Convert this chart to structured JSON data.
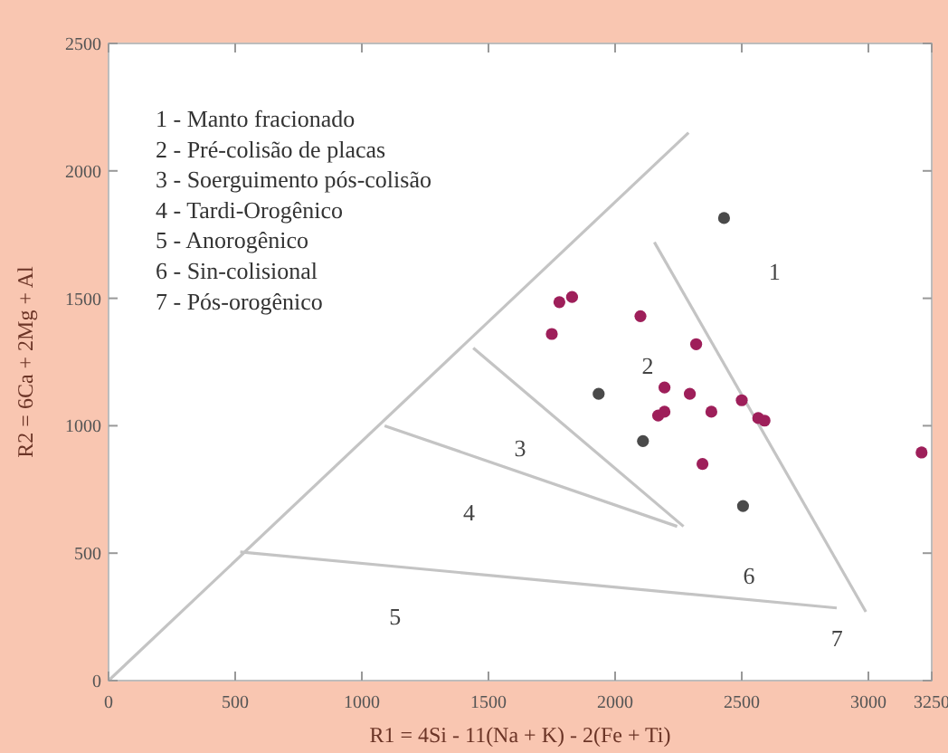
{
  "chart_data": {
    "type": "scatter",
    "xlabel": "R1 = 4Si - 11(Na + K) - 2(Fe + Ti)",
    "ylabel": "R2 = 6Ca + 2Mg + Al",
    "xlim": [
      0,
      3250
    ],
    "ylim": [
      0,
      2500
    ],
    "xticks": [
      0,
      500,
      1000,
      1500,
      2000,
      2500,
      3000,
      3250
    ],
    "yticks": [
      0,
      500,
      1000,
      1500,
      2000,
      2500
    ],
    "grid": false,
    "marker": "circle",
    "series": [
      {
        "type": "line",
        "marker": "none",
        "color": "#c4c4c4",
        "x": [
          0,
          2290
        ],
        "values": [
          0,
          2150
        ]
      },
      {
        "type": "line",
        "marker": "none",
        "color": "#c4c4c4",
        "x": [
          1440,
          2270
        ],
        "values": [
          1305,
          605
        ]
      },
      {
        "type": "line",
        "marker": "none",
        "color": "#c4c4c4",
        "x": [
          1090,
          2245
        ],
        "values": [
          1000,
          605
        ]
      },
      {
        "type": "line",
        "marker": "none",
        "color": "#c4c4c4",
        "x": [
          520,
          2875
        ],
        "values": [
          505,
          285
        ]
      },
      {
        "type": "line",
        "marker": "none",
        "color": "#c4c4c4",
        "x": [
          2155,
          2990
        ],
        "values": [
          1720,
          270
        ]
      },
      {
        "color": "#9e1f5a",
        "x": [
          1750,
          1780,
          1830,
          2100,
          2320,
          2195,
          2295,
          2170,
          2195,
          2380,
          2500,
          2565,
          2590,
          2345,
          3210
        ],
        "values": [
          1360,
          1485,
          1505,
          1430,
          1320,
          1150,
          1125,
          1040,
          1055,
          1055,
          1100,
          1030,
          1020,
          850,
          895
        ]
      },
      {
        "color": "#4a4a4a",
        "x": [
          2430,
          1935,
          2110,
          2505
        ],
        "values": [
          1815,
          1125,
          940,
          685
        ]
      }
    ],
    "annotations": [
      "1 - Manto fracionado",
      "2 - Pré-colisão de placas",
      "3 - Soerguimento pós-colisão",
      "4 - Tardi-Orogênico",
      "5 - Anorogênico",
      "6 - Sin-colisional",
      "7 - Pós-orogênico",
      "1",
      "2",
      "3",
      "4",
      "5",
      "6",
      "7"
    ]
  }
}
